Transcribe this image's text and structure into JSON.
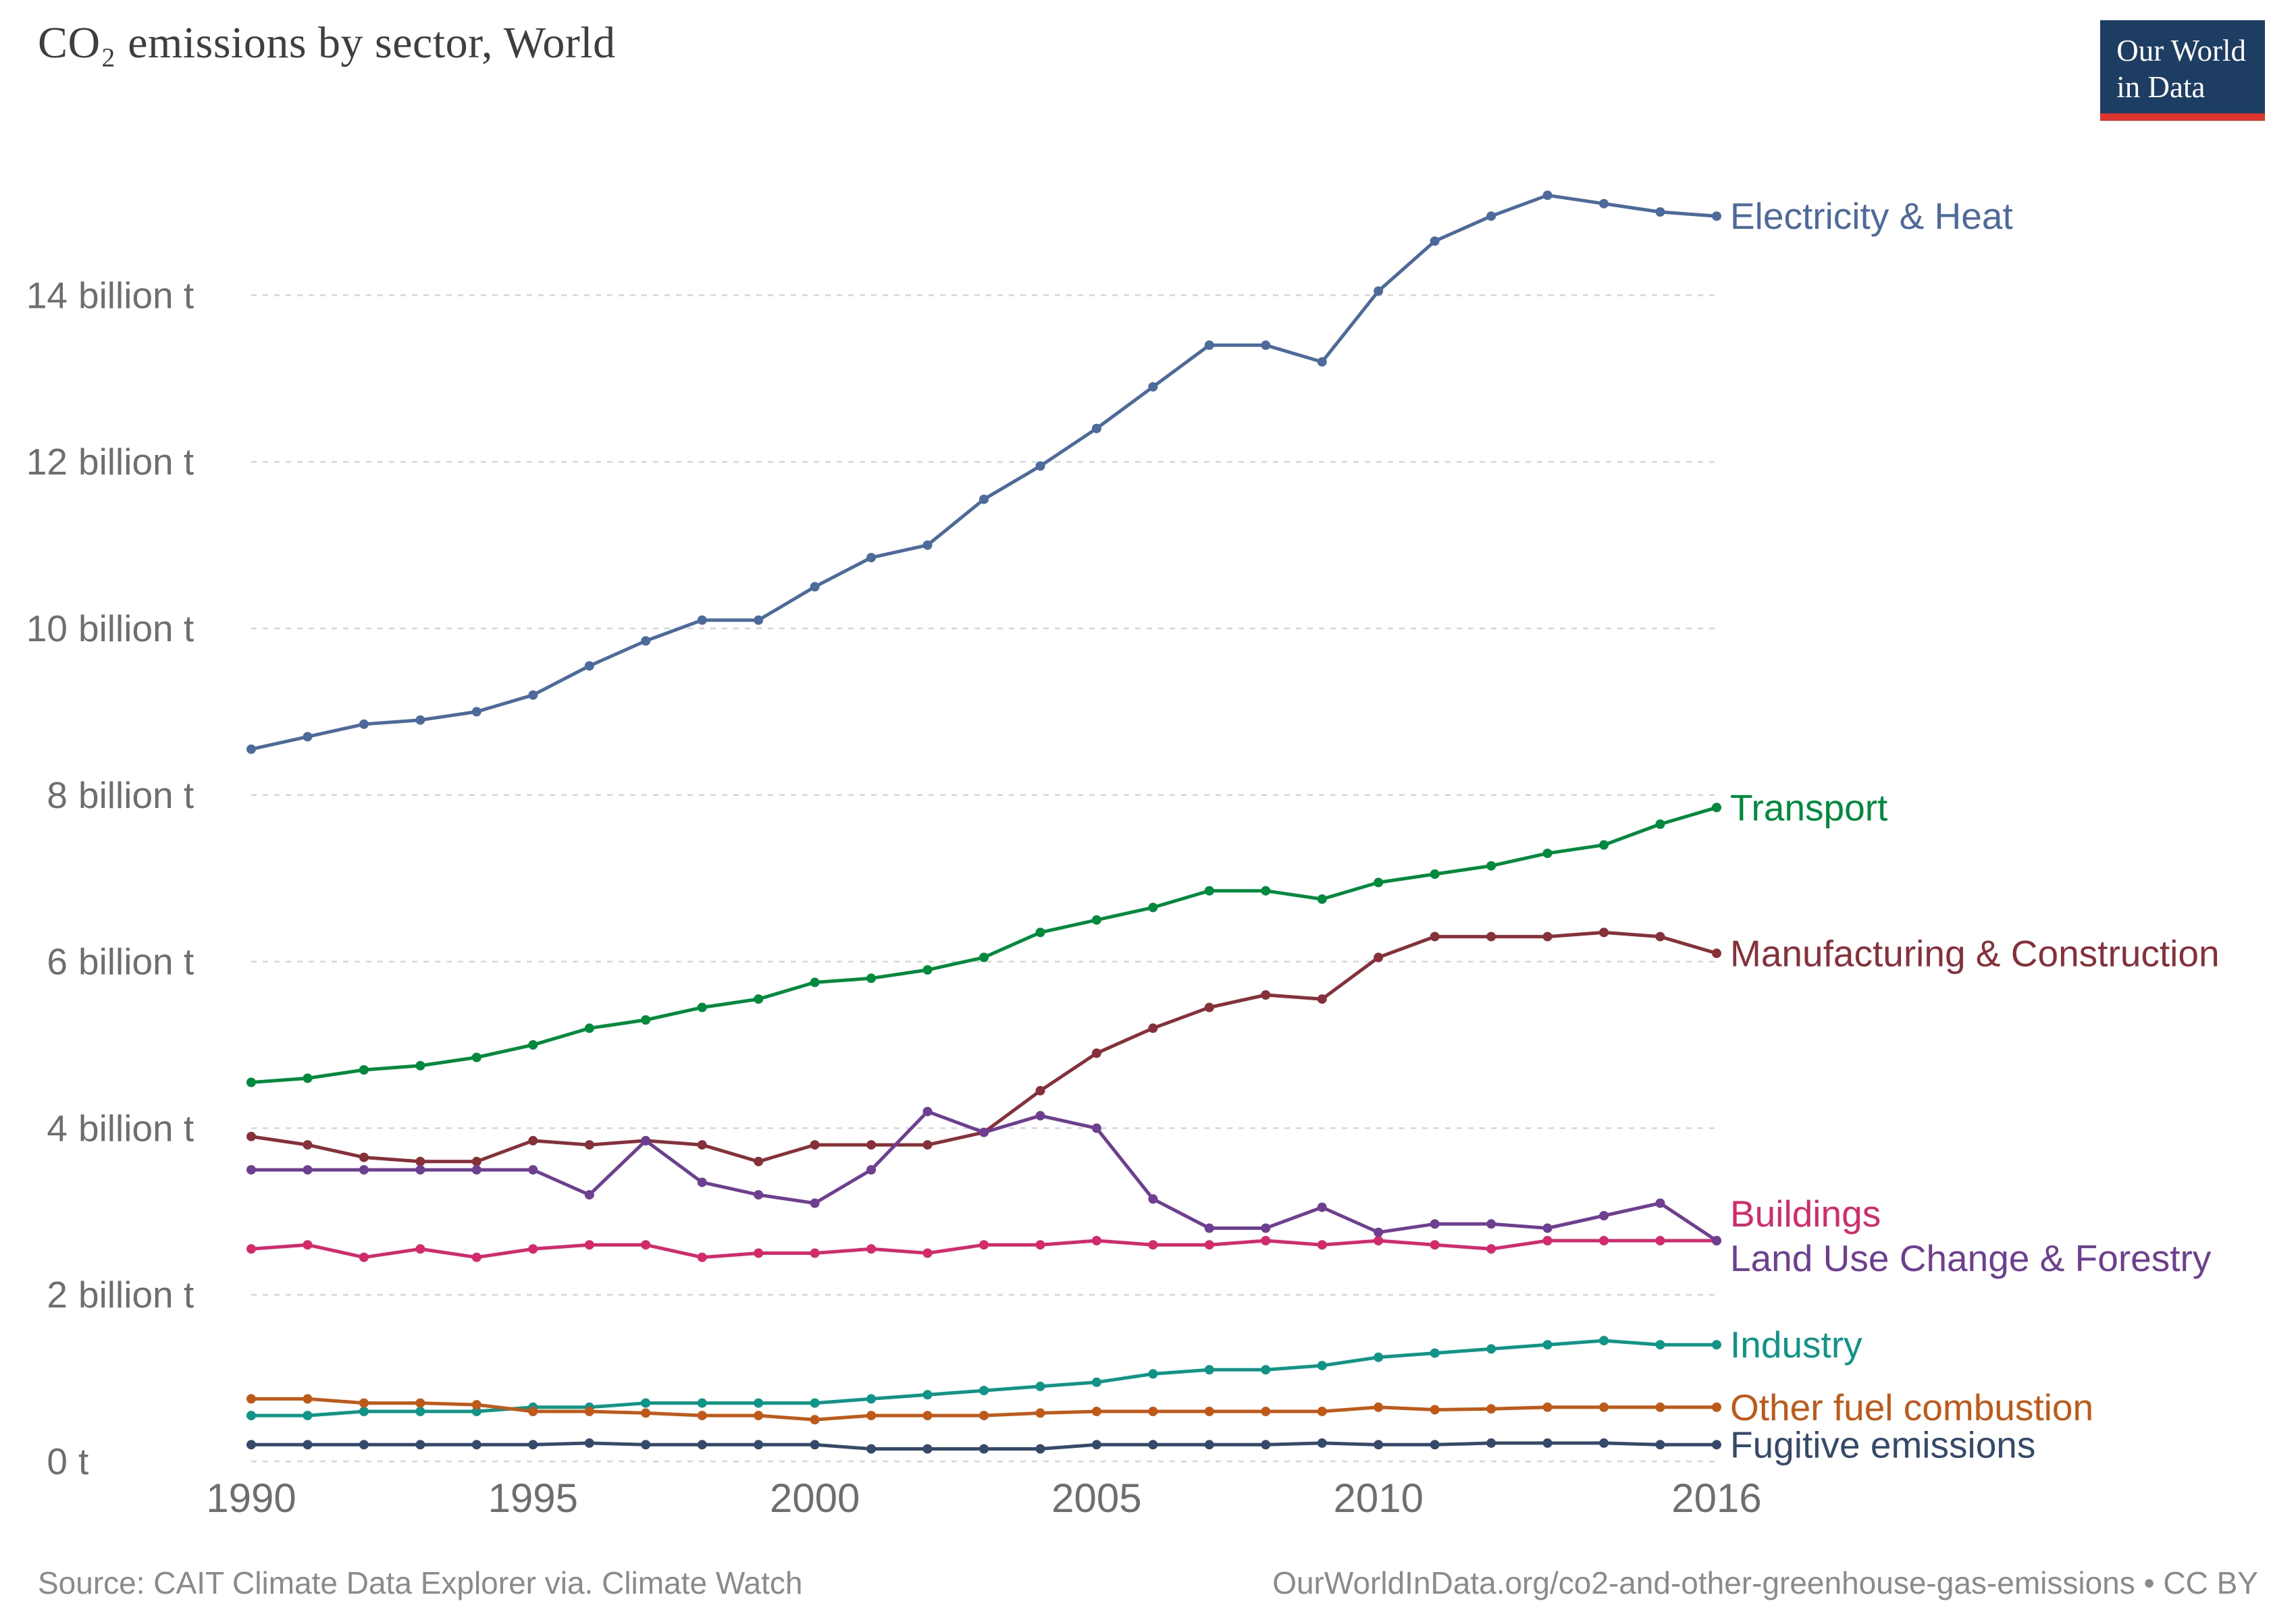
{
  "header": {
    "title": "CO₂ emissions by sector, World"
  },
  "logo": {
    "line1": "Our World",
    "line2": "in Data",
    "bg_color": "#1D3D63",
    "accent_color": "#DE352C"
  },
  "footer": {
    "source": "Source: CAIT Climate Data Explorer via. Climate Watch",
    "attribution": "OurWorldInData.org/co2-and-other-greenhouse-gas-emissions • CC BY"
  },
  "chart_data": {
    "type": "line",
    "title": "CO₂ emissions by sector, World",
    "xlabel": "",
    "ylabel": "",
    "unit": "billion t",
    "grid": true,
    "legend_position": "right-of-line-ends",
    "ylim": [
      0,
      15.5
    ],
    "xlim": [
      1990,
      2016
    ],
    "x": [
      1990,
      1991,
      1992,
      1993,
      1994,
      1995,
      1996,
      1997,
      1998,
      1999,
      2000,
      2001,
      2002,
      2003,
      2004,
      2005,
      2006,
      2007,
      2008,
      2009,
      2010,
      2011,
      2012,
      2013,
      2014,
      2015,
      2016
    ],
    "x_ticks": [
      1990,
      1995,
      2000,
      2005,
      2010,
      2016
    ],
    "y_ticks": [
      {
        "value": 0,
        "num": "0",
        "unit": "t"
      },
      {
        "value": 2,
        "num": "2",
        "unit": "billion t"
      },
      {
        "value": 4,
        "num": "4",
        "unit": "billion t"
      },
      {
        "value": 6,
        "num": "6",
        "unit": "billion t"
      },
      {
        "value": 8,
        "num": "8",
        "unit": "billion t"
      },
      {
        "value": 10,
        "num": "10",
        "unit": "billion t"
      },
      {
        "value": 12,
        "num": "12",
        "unit": "billion t"
      },
      {
        "value": 14,
        "num": "14",
        "unit": "billion t"
      }
    ],
    "series": [
      {
        "name": "Electricity & Heat",
        "color": "#4C6A9C",
        "label_dy": 0,
        "values": [
          8.55,
          8.7,
          8.85,
          8.9,
          9.0,
          9.2,
          9.55,
          9.85,
          10.1,
          10.1,
          10.5,
          10.85,
          11.0,
          11.55,
          11.95,
          12.4,
          12.9,
          13.4,
          13.4,
          13.2,
          14.05,
          14.65,
          14.95,
          15.2,
          15.1,
          15.0,
          14.95
        ]
      },
      {
        "name": "Transport",
        "color": "#008A3C",
        "label_dy": 0,
        "values": [
          4.55,
          4.6,
          4.7,
          4.75,
          4.85,
          5.0,
          5.2,
          5.3,
          5.45,
          5.55,
          5.75,
          5.8,
          5.9,
          6.05,
          6.35,
          6.5,
          6.65,
          6.85,
          6.85,
          6.75,
          6.95,
          7.05,
          7.15,
          7.3,
          7.4,
          7.65,
          7.85
        ]
      },
      {
        "name": "Manufacturing & Construction",
        "color": "#883039",
        "label_dy": 0,
        "values": [
          3.9,
          3.8,
          3.65,
          3.6,
          3.6,
          3.85,
          3.8,
          3.85,
          3.8,
          3.6,
          3.8,
          3.8,
          3.8,
          3.95,
          4.45,
          4.9,
          5.2,
          5.45,
          5.6,
          5.55,
          6.05,
          6.3,
          6.3,
          6.3,
          6.35,
          6.3,
          6.1
        ]
      },
      {
        "name": "Buildings",
        "color": "#D4296B",
        "label_dy": -40,
        "values": [
          2.55,
          2.6,
          2.45,
          2.55,
          2.45,
          2.55,
          2.6,
          2.6,
          2.45,
          2.5,
          2.5,
          2.55,
          2.5,
          2.6,
          2.6,
          2.65,
          2.6,
          2.6,
          2.65,
          2.6,
          2.65,
          2.6,
          2.55,
          2.65,
          2.65,
          2.65,
          2.65
        ]
      },
      {
        "name": "Land Use Change & Forestry",
        "color": "#6D3E91",
        "label_dy": 26,
        "values": [
          3.5,
          3.5,
          3.5,
          3.5,
          3.5,
          3.5,
          3.2,
          3.85,
          3.35,
          3.2,
          3.1,
          3.5,
          4.2,
          3.95,
          4.15,
          4.0,
          3.15,
          2.8,
          2.8,
          3.05,
          2.75,
          2.85,
          2.85,
          2.8,
          2.95,
          3.1,
          2.65
        ]
      },
      {
        "name": "Industry",
        "color": "#0F9488",
        "label_dy": 0,
        "values": [
          0.55,
          0.55,
          0.6,
          0.6,
          0.6,
          0.65,
          0.65,
          0.7,
          0.7,
          0.7,
          0.7,
          0.75,
          0.8,
          0.85,
          0.9,
          0.95,
          1.05,
          1.1,
          1.1,
          1.15,
          1.25,
          1.3,
          1.35,
          1.4,
          1.45,
          1.4,
          1.4
        ]
      },
      {
        "name": "Other fuel combustion",
        "color": "#C05917",
        "label_dy": 0,
        "values": [
          0.75,
          0.75,
          0.7,
          0.7,
          0.68,
          0.6,
          0.6,
          0.58,
          0.55,
          0.55,
          0.5,
          0.55,
          0.55,
          0.55,
          0.58,
          0.6,
          0.6,
          0.6,
          0.6,
          0.6,
          0.65,
          0.62,
          0.63,
          0.65,
          0.65,
          0.65,
          0.65
        ]
      },
      {
        "name": "Fugitive emissions",
        "color": "#35496B",
        "label_dy": 0,
        "values": [
          0.2,
          0.2,
          0.2,
          0.2,
          0.2,
          0.2,
          0.22,
          0.2,
          0.2,
          0.2,
          0.2,
          0.15,
          0.15,
          0.15,
          0.15,
          0.2,
          0.2,
          0.2,
          0.2,
          0.22,
          0.2,
          0.2,
          0.22,
          0.22,
          0.22,
          0.2,
          0.2
        ]
      }
    ]
  }
}
